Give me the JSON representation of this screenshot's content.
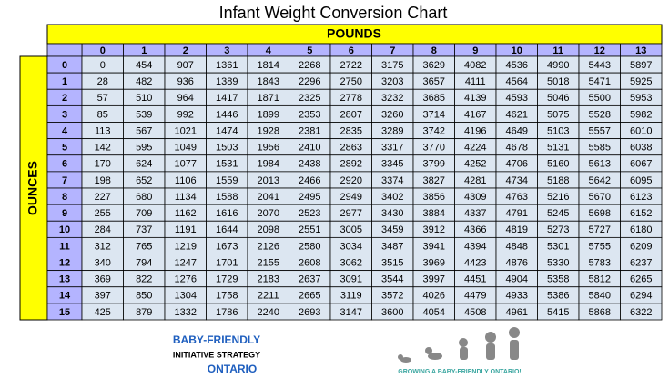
{
  "header": {
    "title": "Infant Weight Conversion Chart"
  },
  "table": {
    "column_axis_label": "POUNDS",
    "row_axis_label": "OUNCES",
    "column_headers": [
      0,
      1,
      2,
      3,
      4,
      5,
      6,
      7,
      8,
      9,
      10,
      11,
      12,
      13
    ],
    "row_headers": [
      0,
      1,
      2,
      3,
      4,
      5,
      6,
      7,
      8,
      9,
      10,
      11,
      12,
      13,
      14,
      15
    ],
    "rows": [
      [
        0,
        454,
        907,
        1361,
        1814,
        2268,
        2722,
        3175,
        3629,
        4082,
        4536,
        4990,
        5443,
        5897
      ],
      [
        28,
        482,
        936,
        1389,
        1843,
        2296,
        2750,
        3203,
        3657,
        4111,
        4564,
        5018,
        5471,
        5925
      ],
      [
        57,
        510,
        964,
        1417,
        1871,
        2325,
        2778,
        3232,
        3685,
        4139,
        4593,
        5046,
        5500,
        5953
      ],
      [
        85,
        539,
        992,
        1446,
        1899,
        2353,
        2807,
        3260,
        3714,
        4167,
        4621,
        5075,
        5528,
        5982
      ],
      [
        113,
        567,
        1021,
        1474,
        1928,
        2381,
        2835,
        3289,
        3742,
        4196,
        4649,
        5103,
        5557,
        6010
      ],
      [
        142,
        595,
        1049,
        1503,
        1956,
        2410,
        2863,
        3317,
        3770,
        4224,
        4678,
        5131,
        5585,
        6038
      ],
      [
        170,
        624,
        1077,
        1531,
        1984,
        2438,
        2892,
        3345,
        3799,
        4252,
        4706,
        5160,
        5613,
        6067
      ],
      [
        198,
        652,
        1106,
        1559,
        2013,
        2466,
        2920,
        3374,
        3827,
        4281,
        4734,
        5188,
        5642,
        6095
      ],
      [
        227,
        680,
        1134,
        1588,
        2041,
        2495,
        2949,
        3402,
        3856,
        4309,
        4763,
        5216,
        5670,
        6123
      ],
      [
        255,
        709,
        1162,
        1616,
        2070,
        2523,
        2977,
        3430,
        3884,
        4337,
        4791,
        5245,
        5698,
        6152
      ],
      [
        284,
        737,
        1191,
        1644,
        2098,
        2551,
        3005,
        3459,
        3912,
        4366,
        4819,
        5273,
        5727,
        6180
      ],
      [
        312,
        765,
        1219,
        1673,
        2126,
        2580,
        3034,
        3487,
        3941,
        4394,
        4848,
        5301,
        5755,
        6209
      ],
      [
        340,
        794,
        1247,
        1701,
        2155,
        2608,
        3062,
        3515,
        3969,
        4423,
        4876,
        5330,
        5783,
        6237
      ],
      [
        369,
        822,
        1276,
        1729,
        2183,
        2637,
        3091,
        3544,
        3997,
        4451,
        4904,
        5358,
        5812,
        6265
      ],
      [
        397,
        850,
        1304,
        1758,
        2211,
        2665,
        3119,
        3572,
        4026,
        4479,
        4933,
        5386,
        5840,
        6294
      ],
      [
        425,
        879,
        1332,
        1786,
        2240,
        2693,
        3147,
        3600,
        4054,
        4508,
        4961,
        5415,
        5868,
        6322
      ]
    ]
  },
  "footer": {
    "logo_lines": [
      "BABY-FRIENDLY",
      "INITIATIVE STRATEGY",
      "ONTARIO"
    ],
    "tagline": "GROWING A BABY-FRIENDLY ONTARIO!"
  }
}
